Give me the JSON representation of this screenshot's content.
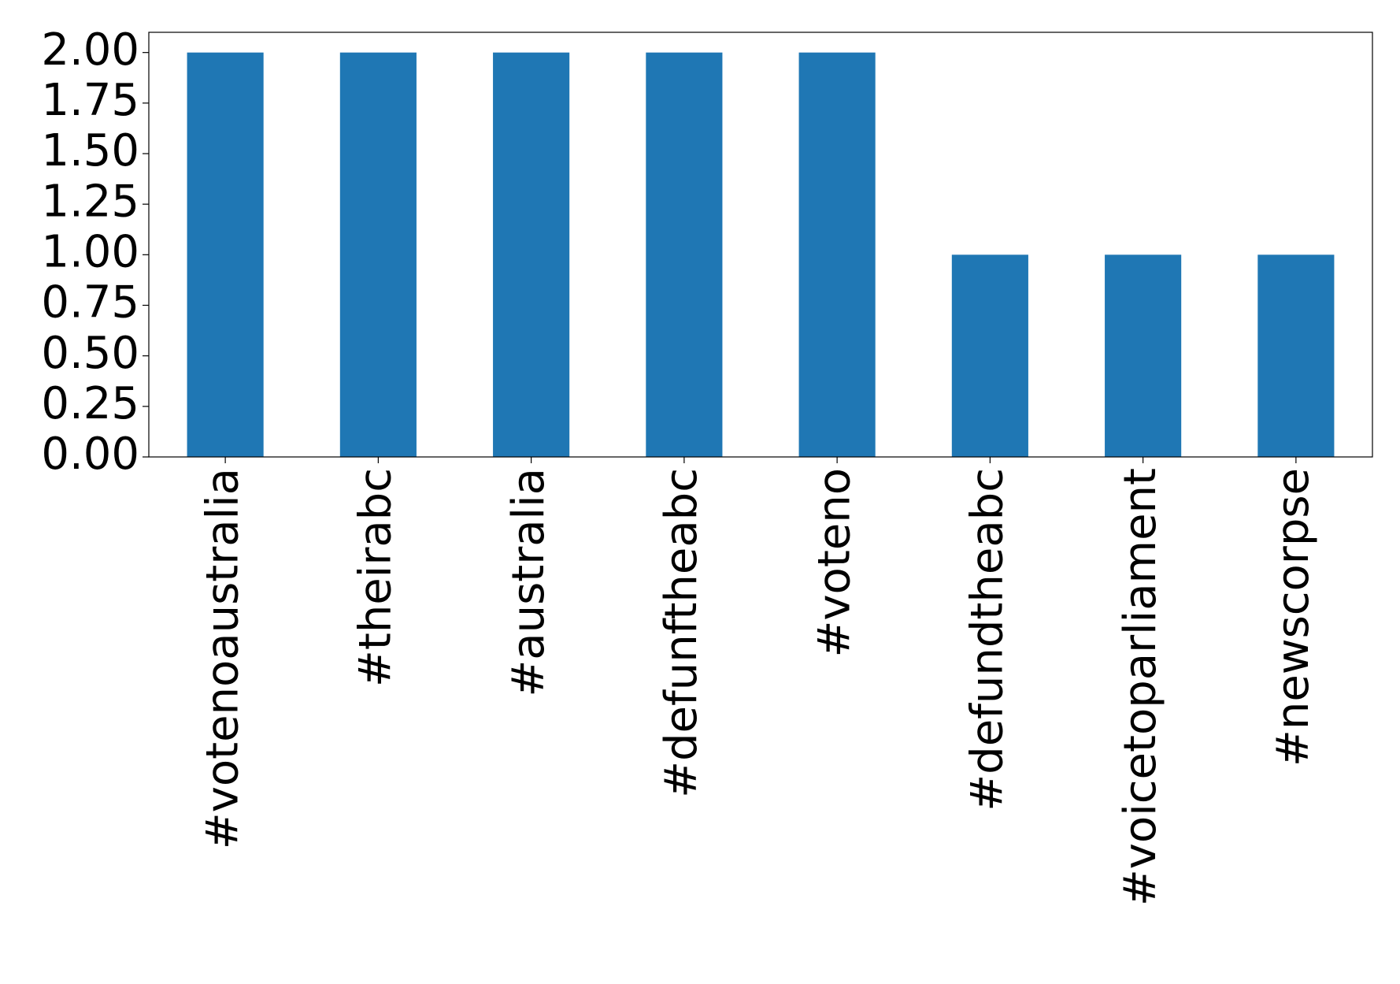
{
  "chart_data": {
    "type": "bar",
    "categories": [
      "#votenoaustralia",
      "#theirabc",
      "#australia",
      "#defunftheabc",
      "#voteno",
      "#defundtheabc",
      "#voicetoparliament",
      "#newscorpse"
    ],
    "values": [
      2,
      2,
      2,
      2,
      2,
      1,
      1,
      1
    ],
    "color": "#1f77b4",
    "ylim": [
      0,
      2.1
    ],
    "yticks": [
      {
        "value": 0,
        "label": "0.00"
      },
      {
        "value": 0.25,
        "label": "0.25"
      },
      {
        "value": 0.5,
        "label": "0.50"
      },
      {
        "value": 0.75,
        "label": "0.75"
      },
      {
        "value": 1,
        "label": "1.00"
      },
      {
        "value": 1.25,
        "label": "1.25"
      },
      {
        "value": 1.5,
        "label": "1.50"
      },
      {
        "value": 1.75,
        "label": "1.75"
      },
      {
        "value": 2,
        "label": "2.00"
      }
    ],
    "grid": false
  }
}
